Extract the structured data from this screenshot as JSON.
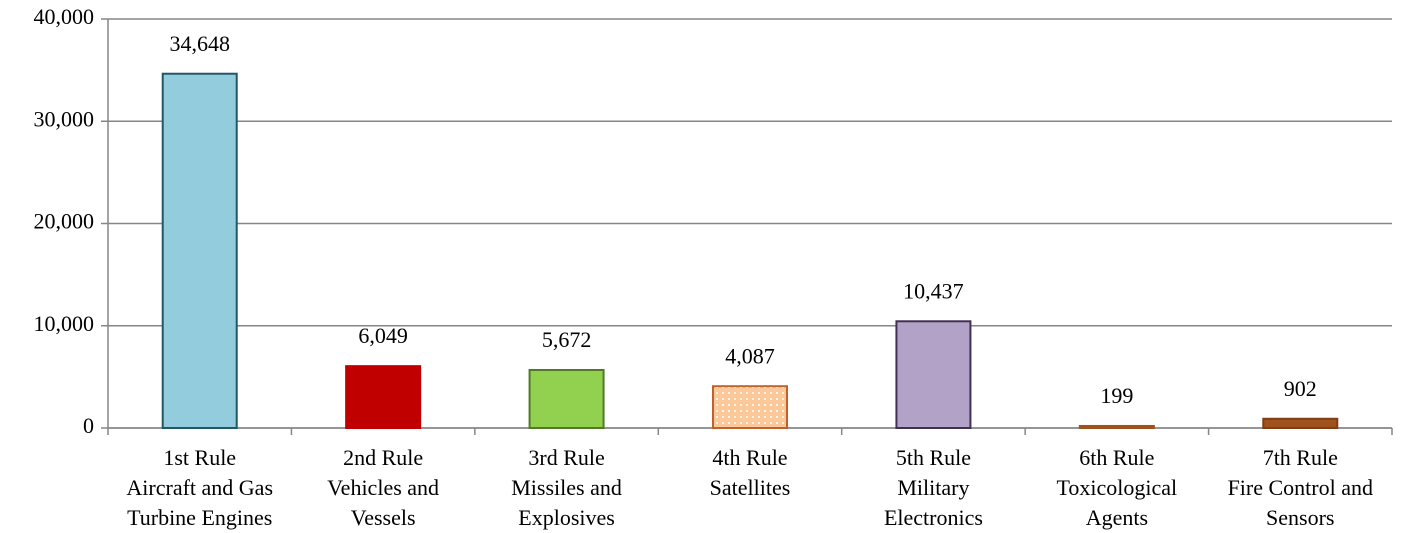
{
  "chart_data": {
    "type": "bar",
    "categories": [
      [
        "1st Rule",
        "Aircraft and Gas",
        "Turbine Engines"
      ],
      [
        "2nd Rule",
        "Vehicles and",
        "Vessels"
      ],
      [
        "3rd Rule",
        "Missiles and",
        "Explosives"
      ],
      [
        "4th Rule",
        "Satellites"
      ],
      [
        "5th Rule",
        "Military",
        "Electronics"
      ],
      [
        "6th Rule",
        "Toxicological",
        "Agents"
      ],
      [
        "7th Rule",
        "Fire Control and",
        "Sensors"
      ]
    ],
    "values": [
      34648,
      6049,
      5672,
      4087,
      10437,
      199,
      902
    ],
    "value_labels": [
      "34,648",
      "6,049",
      "5,672",
      "4,087",
      "10,437",
      "199",
      "902"
    ],
    "colors": [
      "#93cddd",
      "#c00000",
      "#92d050",
      "#fbc89a",
      "#b3a2c7",
      "#a0521d",
      "#a0521d"
    ],
    "edge_colors": [
      "#215868",
      "#c00000",
      "#4f7a28",
      "#c0622c",
      "#403152",
      "#a0521d",
      "#7f3e16"
    ],
    "patterns": [
      null,
      null,
      null,
      "dotted",
      null,
      null,
      null
    ],
    "ylim": [
      0,
      40000
    ],
    "yticks": [
      0,
      {
        "value": 10000,
        "label": "10,000"
      },
      {
        "value": 20000,
        "label": "20,000"
      },
      {
        "value": 30000,
        "label": "30,000"
      },
      {
        "value": 40000,
        "label": "40,000"
      }
    ],
    "grid": true
  }
}
